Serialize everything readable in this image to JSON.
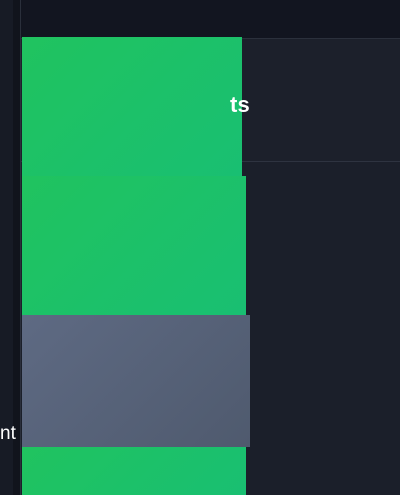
{
  "panel": {
    "title": "ts"
  },
  "cards": [
    {
      "label": ""
    },
    {
      "label": ""
    },
    {
      "label": "nt"
    },
    {
      "label": ""
    }
  ],
  "colors": {
    "background": "#1b1f2a",
    "topbar": "#121520",
    "green_accent": "#20c35f",
    "slate_card": "#5e6a83",
    "text_primary": "#ffffff"
  }
}
